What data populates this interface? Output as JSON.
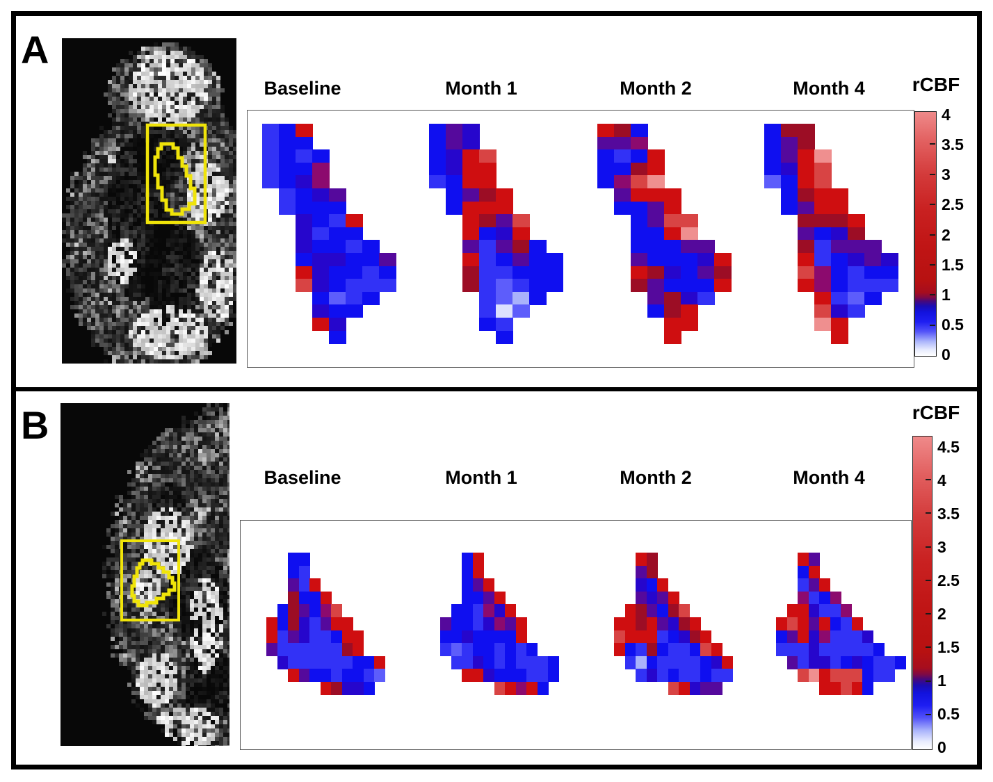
{
  "figure": {
    "panels": [
      {
        "label": "A",
        "timepoints": [
          "Baseline",
          "Month 1",
          "Month 2",
          "Month 4"
        ],
        "colorbar": {
          "title": "rCBF",
          "ticks": [
            "4",
            "3.5",
            "3",
            "2.5",
            "2",
            "1.5",
            "1",
            "0.5",
            "0"
          ]
        }
      },
      {
        "label": "B",
        "timepoints": [
          "Baseline",
          "Month 1",
          "Month 2",
          "Month 4"
        ],
        "colorbar": {
          "title": "rCBF",
          "ticks": [
            "4.5",
            "4",
            "3.5",
            "3",
            "2.5",
            "2",
            "1.5",
            "1",
            "0.5",
            "0"
          ]
        }
      }
    ]
  },
  "palette": {
    "R": "#cf0e10",
    "r": "#d84444",
    "p": "#ef8f8f",
    "m": "#9c0d25",
    "M": "#8c0a6e",
    "V": "#55099c",
    "D": "#2606cc",
    "B": "#0f0ff0",
    "b": "#3232f6",
    "L": "#5d5dfb",
    "W": "#a9b2fb",
    "w": "#dce0fe"
  },
  "chart_data": [
    {
      "type": "heatmap",
      "panel": "A",
      "metric": "rCBF",
      "value_range": [
        0,
        4
      ],
      "colorbar_ticks": [
        4,
        3.5,
        3,
        2.5,
        2,
        1.5,
        1,
        0.5,
        0
      ],
      "legend_position": "right",
      "columns": [
        "Baseline",
        "Month 1",
        "Month 2",
        "Month 4"
      ],
      "cell_value_encoding": "Color codes map to rCBF via palette: R=strong red (>1.5), r=medium red, p=pink (~1.2 light), m=dark crimson (~1.1), M=magenta-purple (~1), V=violet (~0.9), D=blue-violet (~0.7), B=blue (~0.5), b=bright blue (~0.45), L=light blue (~0.3), W=pale lavender (~0.15), w=near white (~0.05), .=no voxel",
      "grids": {
        "Baseline": [
          "bBR.....",
          "bBB.....",
          "bBbB....",
          "bBBM....",
          "bBDM....",
          ".bBDV...",
          ".bBBB...",
          "..DBbR..",
          "..DbBB..",
          "..DBBbB.",
          "..BDDBBV",
          "..RDBBbB",
          "..rDBbbb",
          "...BLbB.",
          "...DBB..",
          "...RD...",
          "....B..."
        ],
        "Month 1": [
          "BVD.....",
          "BVD.....",
          "BDRr....",
          "BDRR....",
          "bBRR....",
          ".BVmR...",
          ".BRRR...",
          "..RmVr..",
          "..RBDR..",
          "..VbVmB.",
          "..RbBVBB",
          "..mbbBBB",
          "..mbLbBB",
          "...bLWB.",
          "...bwL..",
          "...Bb...",
          "....B..."
        ],
        "Month 2": [
          "RmB.....",
          "VVM.....",
          "BbBR....",
          "BBmR....",
          "BMrp....",
          ".VRRR...",
          ".BBVR...",
          "..BVrr..",
          "..BBRp..",
          "..BBBVV.",
          "..VBBBDR",
          "..RmDBVm",
          "..mVBBBR",
          "...VmDb.",
          "...BmR..",
          "....RR..",
          "....R..."
        ],
        "Month 4": [
          "Bmm.....",
          "BVm.....",
          "BVRp....",
          "BDRr....",
          "LBRr....",
          ".BmRR...",
          ".BVRR...",
          "..mmmR..",
          "..VBDm..",
          "..mbVVV.",
          "..RbBDVD",
          "..rMBbBB",
          "..RMBbbb",
          "...RbLB.",
          "...rDb..",
          "...pR...",
          "....R..."
        ]
      }
    },
    {
      "type": "heatmap",
      "panel": "B",
      "metric": "rCBF",
      "value_range": [
        0,
        4.5
      ],
      "colorbar_ticks": [
        4.5,
        4,
        3.5,
        3,
        2.5,
        2,
        1.5,
        1,
        0.5,
        0
      ],
      "legend_position": "right",
      "columns": [
        "Baseline",
        "Month 1",
        "Month 2",
        "Month 4"
      ],
      "cell_value_encoding": "Same color-code palette as panel A",
      "grids": {
        "Baseline": [
          "..BB........",
          "..Bb........",
          "..VbR.......",
          "..mBBR......",
          ".BmVBMr.....",
          "RBmDbVRR....",
          "RbVDbbBRR...",
          "VbbbbbbmR...",
          ".DbbbbbbBBR.",
          "..RVBBbBBbL.",
          ".....RmDDB.."
        ],
        "Month 1": [
          "..BR........",
          "..BR........",
          "..BVR.......",
          "..BBVR......",
          ".BBbMDR.....",
          "VBBbDMVR....",
          "BBDBBBBR....",
          "bLbBBbBbB...",
          ".bbDBbBbbbB.",
          "..RRDBBBbbB.",
          ".....rRMRB.."
        ],
        "Month 2": [
          "..Rm........",
          "..Vm........",
          "..DBR.......",
          "..VDVR......",
          ".RmVBmr.....",
          "RRmRVDmR....",
          "rRRRbBDmR...",
          "RBbmBbbBrR..",
          ".bWBbbbbBDR.",
          "..bDbBbbBbb.",
          ".....rRDVV.."
        ],
        "Month 4": [
          "..RV........",
          "..BR........",
          "..bVR.......",
          "..MbBM......",
          ".RRDbbM.....",
          "RrRVRBbR....",
          "BVRDMbbbD...",
          "bbbDbbbbbB..",
          ".VbDDbBDBbbB",
          "..rpRrrrBbb.",
          "....RRrRB..."
        ]
      }
    }
  ]
}
